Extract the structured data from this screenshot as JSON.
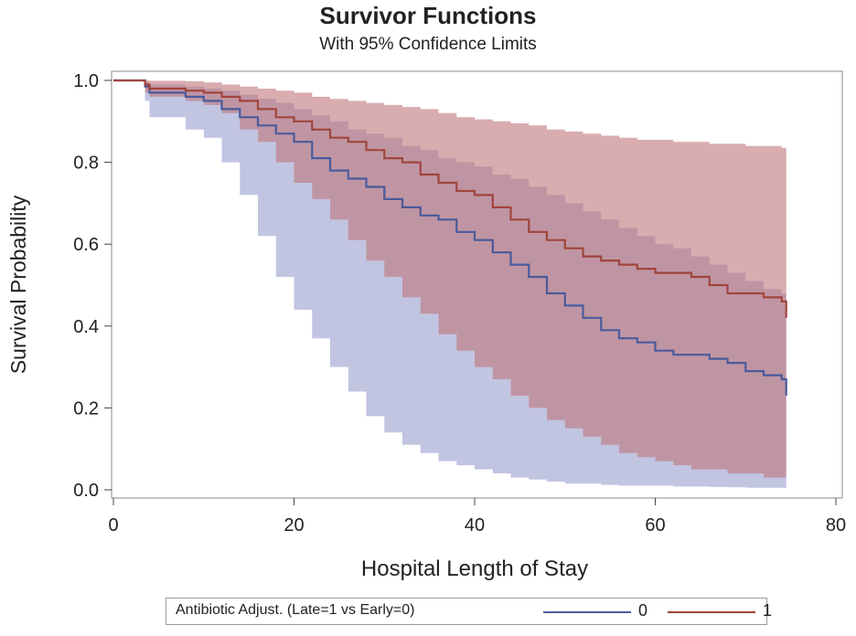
{
  "chart_data": {
    "type": "line",
    "title": "Survivor Functions",
    "subtitle": "With 95% Confidence Limits",
    "xlabel": "Hospital Length of Stay",
    "ylabel": "Survival Probability",
    "xlim": [
      0,
      80
    ],
    "ylim": [
      0,
      1
    ],
    "xticks": [
      0,
      20,
      40,
      60,
      80
    ],
    "yticks": [
      0.0,
      0.2,
      0.4,
      0.6,
      0.8,
      1.0
    ],
    "xtick_labels": [
      "0",
      "20",
      "40",
      "60",
      "80"
    ],
    "ytick_labels": [
      "0.0",
      "0.2",
      "0.4",
      "0.6",
      "0.8",
      "1.0"
    ],
    "grid": false,
    "legend": {
      "title": "Antibiotic Adjust. (Late=1 vs Early=0)",
      "placement": "bottom"
    },
    "series": [
      {
        "name": "0",
        "color": "#4a5a9c",
        "band_color": "#8e96c8",
        "x": [
          0,
          3,
          3.5,
          4,
          8,
          10,
          12,
          14,
          16,
          18,
          20,
          22,
          24,
          26,
          28,
          30,
          32,
          34,
          36,
          38,
          40,
          42,
          44,
          46,
          48,
          50,
          52,
          54,
          56,
          58,
          60,
          62,
          64,
          66,
          68,
          70,
          72,
          74,
          74.5
        ],
        "y": [
          1.0,
          1.0,
          0.985,
          0.97,
          0.96,
          0.95,
          0.93,
          0.91,
          0.89,
          0.87,
          0.85,
          0.81,
          0.78,
          0.76,
          0.74,
          0.71,
          0.69,
          0.67,
          0.66,
          0.63,
          0.61,
          0.58,
          0.55,
          0.52,
          0.48,
          0.45,
          0.42,
          0.39,
          0.37,
          0.36,
          0.34,
          0.33,
          0.33,
          0.32,
          0.31,
          0.29,
          0.28,
          0.27,
          0.23
        ],
        "lower": [
          1.0,
          1.0,
          0.95,
          0.91,
          0.88,
          0.86,
          0.8,
          0.72,
          0.62,
          0.52,
          0.44,
          0.37,
          0.3,
          0.24,
          0.18,
          0.14,
          0.11,
          0.09,
          0.07,
          0.06,
          0.05,
          0.04,
          0.03,
          0.025,
          0.02,
          0.015,
          0.015,
          0.012,
          0.01,
          0.01,
          0.01,
          0.008,
          0.008,
          0.007,
          0.006,
          0.005,
          0.005,
          0.005,
          0.005
        ],
        "upper": [
          1.0,
          1.0,
          0.995,
          0.99,
          0.985,
          0.98,
          0.975,
          0.965,
          0.955,
          0.945,
          0.93,
          0.915,
          0.9,
          0.88,
          0.87,
          0.86,
          0.84,
          0.83,
          0.81,
          0.8,
          0.79,
          0.77,
          0.76,
          0.74,
          0.72,
          0.7,
          0.68,
          0.66,
          0.64,
          0.62,
          0.6,
          0.59,
          0.57,
          0.55,
          0.53,
          0.51,
          0.49,
          0.48,
          0.47
        ]
      },
      {
        "name": "1",
        "color": "#a0453c",
        "band_color": "#c0757a",
        "x": [
          0,
          3,
          3.5,
          4,
          8,
          10,
          12,
          14,
          16,
          18,
          20,
          22,
          24,
          26,
          28,
          30,
          32,
          34,
          36,
          38,
          40,
          42,
          44,
          46,
          48,
          50,
          52,
          54,
          56,
          58,
          60,
          62,
          64,
          66,
          68,
          70,
          72,
          74,
          74.5
        ],
        "y": [
          1.0,
          1.0,
          0.99,
          0.98,
          0.975,
          0.97,
          0.96,
          0.95,
          0.93,
          0.91,
          0.9,
          0.88,
          0.86,
          0.85,
          0.83,
          0.81,
          0.8,
          0.77,
          0.75,
          0.73,
          0.72,
          0.69,
          0.66,
          0.63,
          0.61,
          0.59,
          0.57,
          0.56,
          0.55,
          0.54,
          0.53,
          0.53,
          0.52,
          0.5,
          0.48,
          0.48,
          0.47,
          0.46,
          0.42
        ],
        "lower": [
          1.0,
          1.0,
          0.97,
          0.96,
          0.95,
          0.94,
          0.92,
          0.88,
          0.85,
          0.8,
          0.75,
          0.71,
          0.66,
          0.61,
          0.56,
          0.52,
          0.47,
          0.43,
          0.38,
          0.34,
          0.3,
          0.27,
          0.23,
          0.2,
          0.17,
          0.15,
          0.13,
          0.11,
          0.09,
          0.08,
          0.07,
          0.06,
          0.05,
          0.05,
          0.04,
          0.04,
          0.03,
          0.03,
          0.025
        ],
        "upper": [
          1.0,
          1.0,
          1.0,
          0.999,
          0.998,
          0.995,
          0.99,
          0.985,
          0.98,
          0.975,
          0.97,
          0.96,
          0.955,
          0.95,
          0.945,
          0.94,
          0.935,
          0.93,
          0.92,
          0.91,
          0.905,
          0.9,
          0.895,
          0.89,
          0.88,
          0.875,
          0.87,
          0.865,
          0.86,
          0.855,
          0.855,
          0.85,
          0.85,
          0.845,
          0.845,
          0.84,
          0.84,
          0.835,
          0.835
        ]
      }
    ]
  }
}
